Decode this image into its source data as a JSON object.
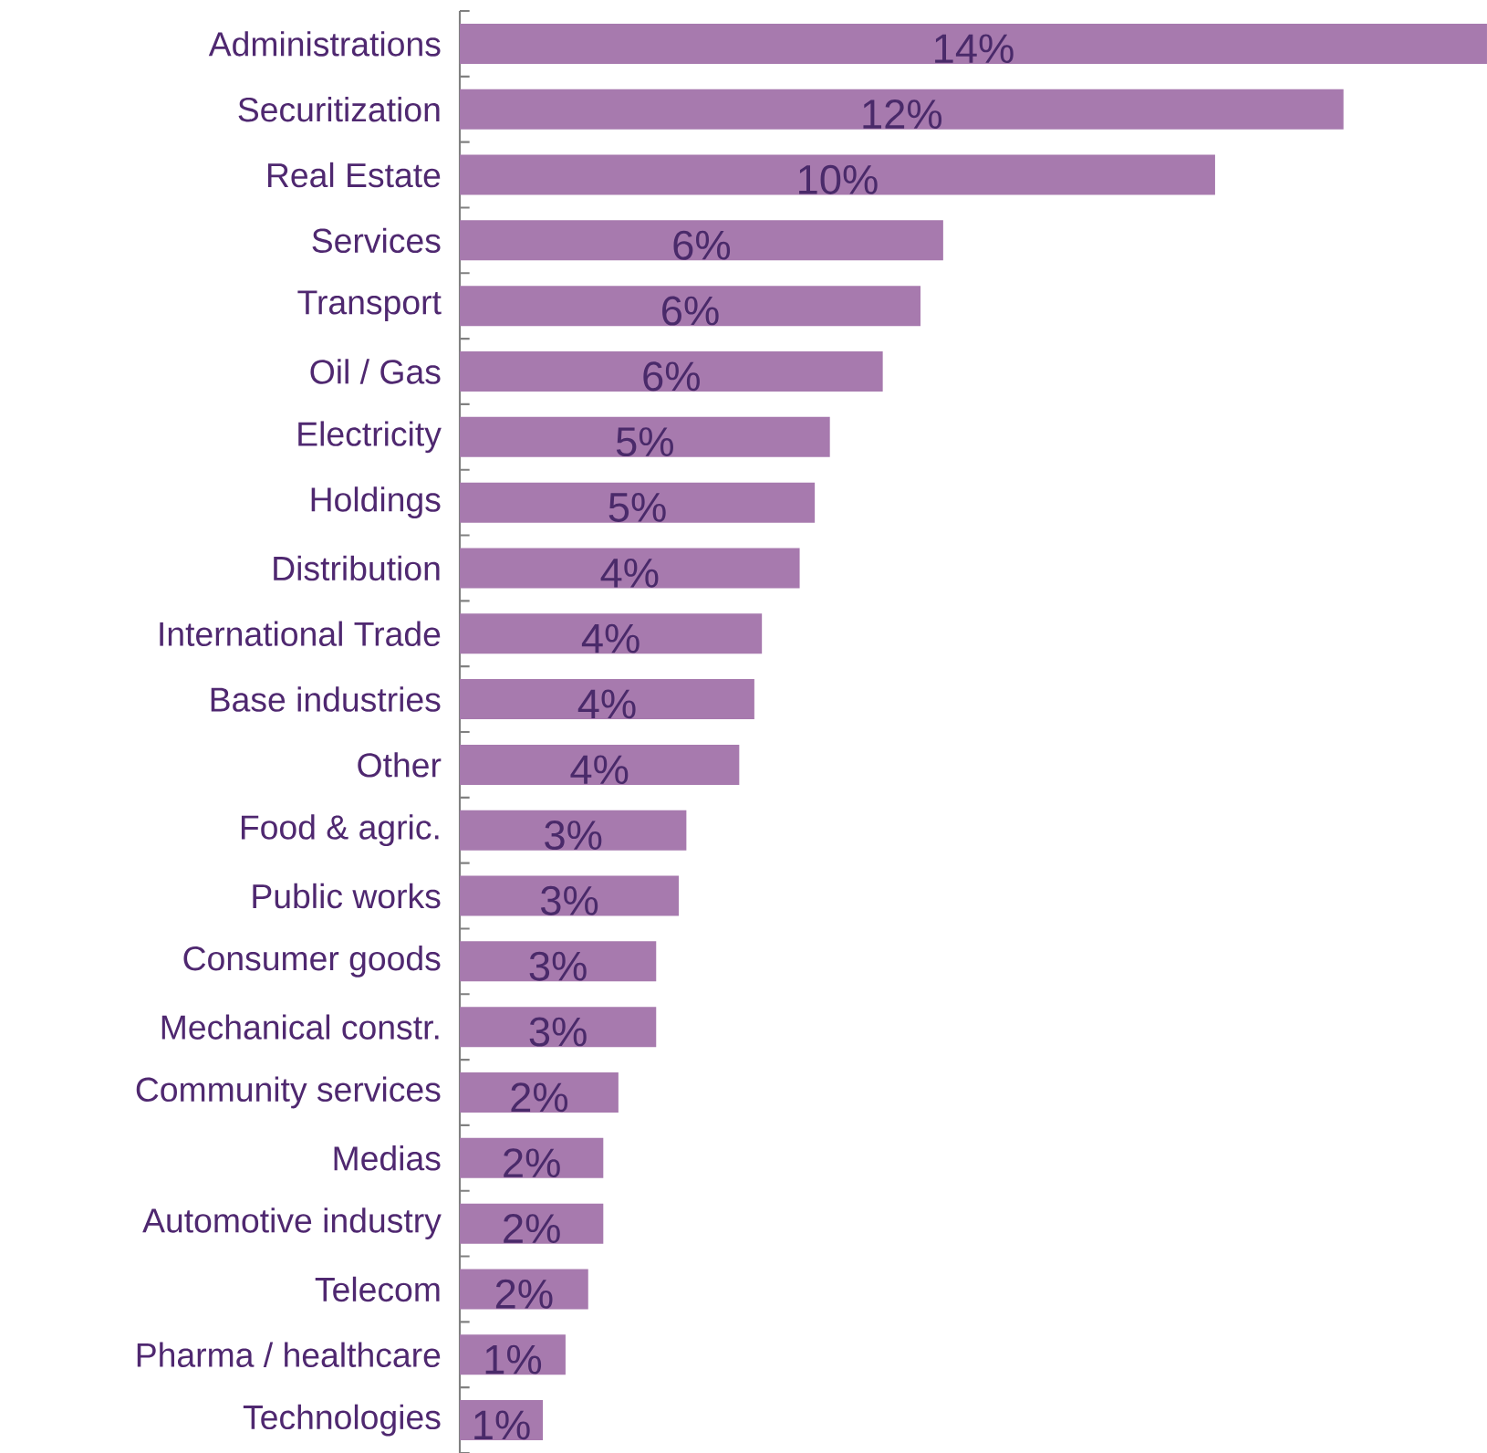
{
  "chart_data": {
    "type": "bar",
    "orientation": "horizontal",
    "categories": [
      "Administrations",
      "Securitization",
      "Real Estate",
      "Services",
      "Transport",
      "Oil / Gas",
      "Electricity",
      "Holdings",
      "Distribution",
      "International Trade",
      "Base industries",
      "Other",
      "Food & agric.",
      "Public works",
      "Consumer goods",
      "Mechanical constr.",
      "Community services",
      "Medias",
      "Automotive industry",
      "Telecom",
      "Pharma / healthcare",
      "Technologies"
    ],
    "values": [
      13.6,
      11.7,
      10.0,
      6.4,
      6.1,
      5.6,
      4.9,
      4.7,
      4.5,
      4.0,
      3.9,
      3.7,
      3.0,
      2.9,
      2.6,
      2.6,
      2.1,
      1.9,
      1.9,
      1.7,
      1.4,
      1.1
    ],
    "value_labels": [
      "14%",
      "12%",
      "10%",
      "6%",
      "6%",
      "6%",
      "5%",
      "5%",
      "4%",
      "4%",
      "4%",
      "4%",
      "3%",
      "3%",
      "3%",
      "3%",
      "2%",
      "2%",
      "2%",
      "2%",
      "1%",
      "1%"
    ],
    "color": "#a77aae"
  }
}
